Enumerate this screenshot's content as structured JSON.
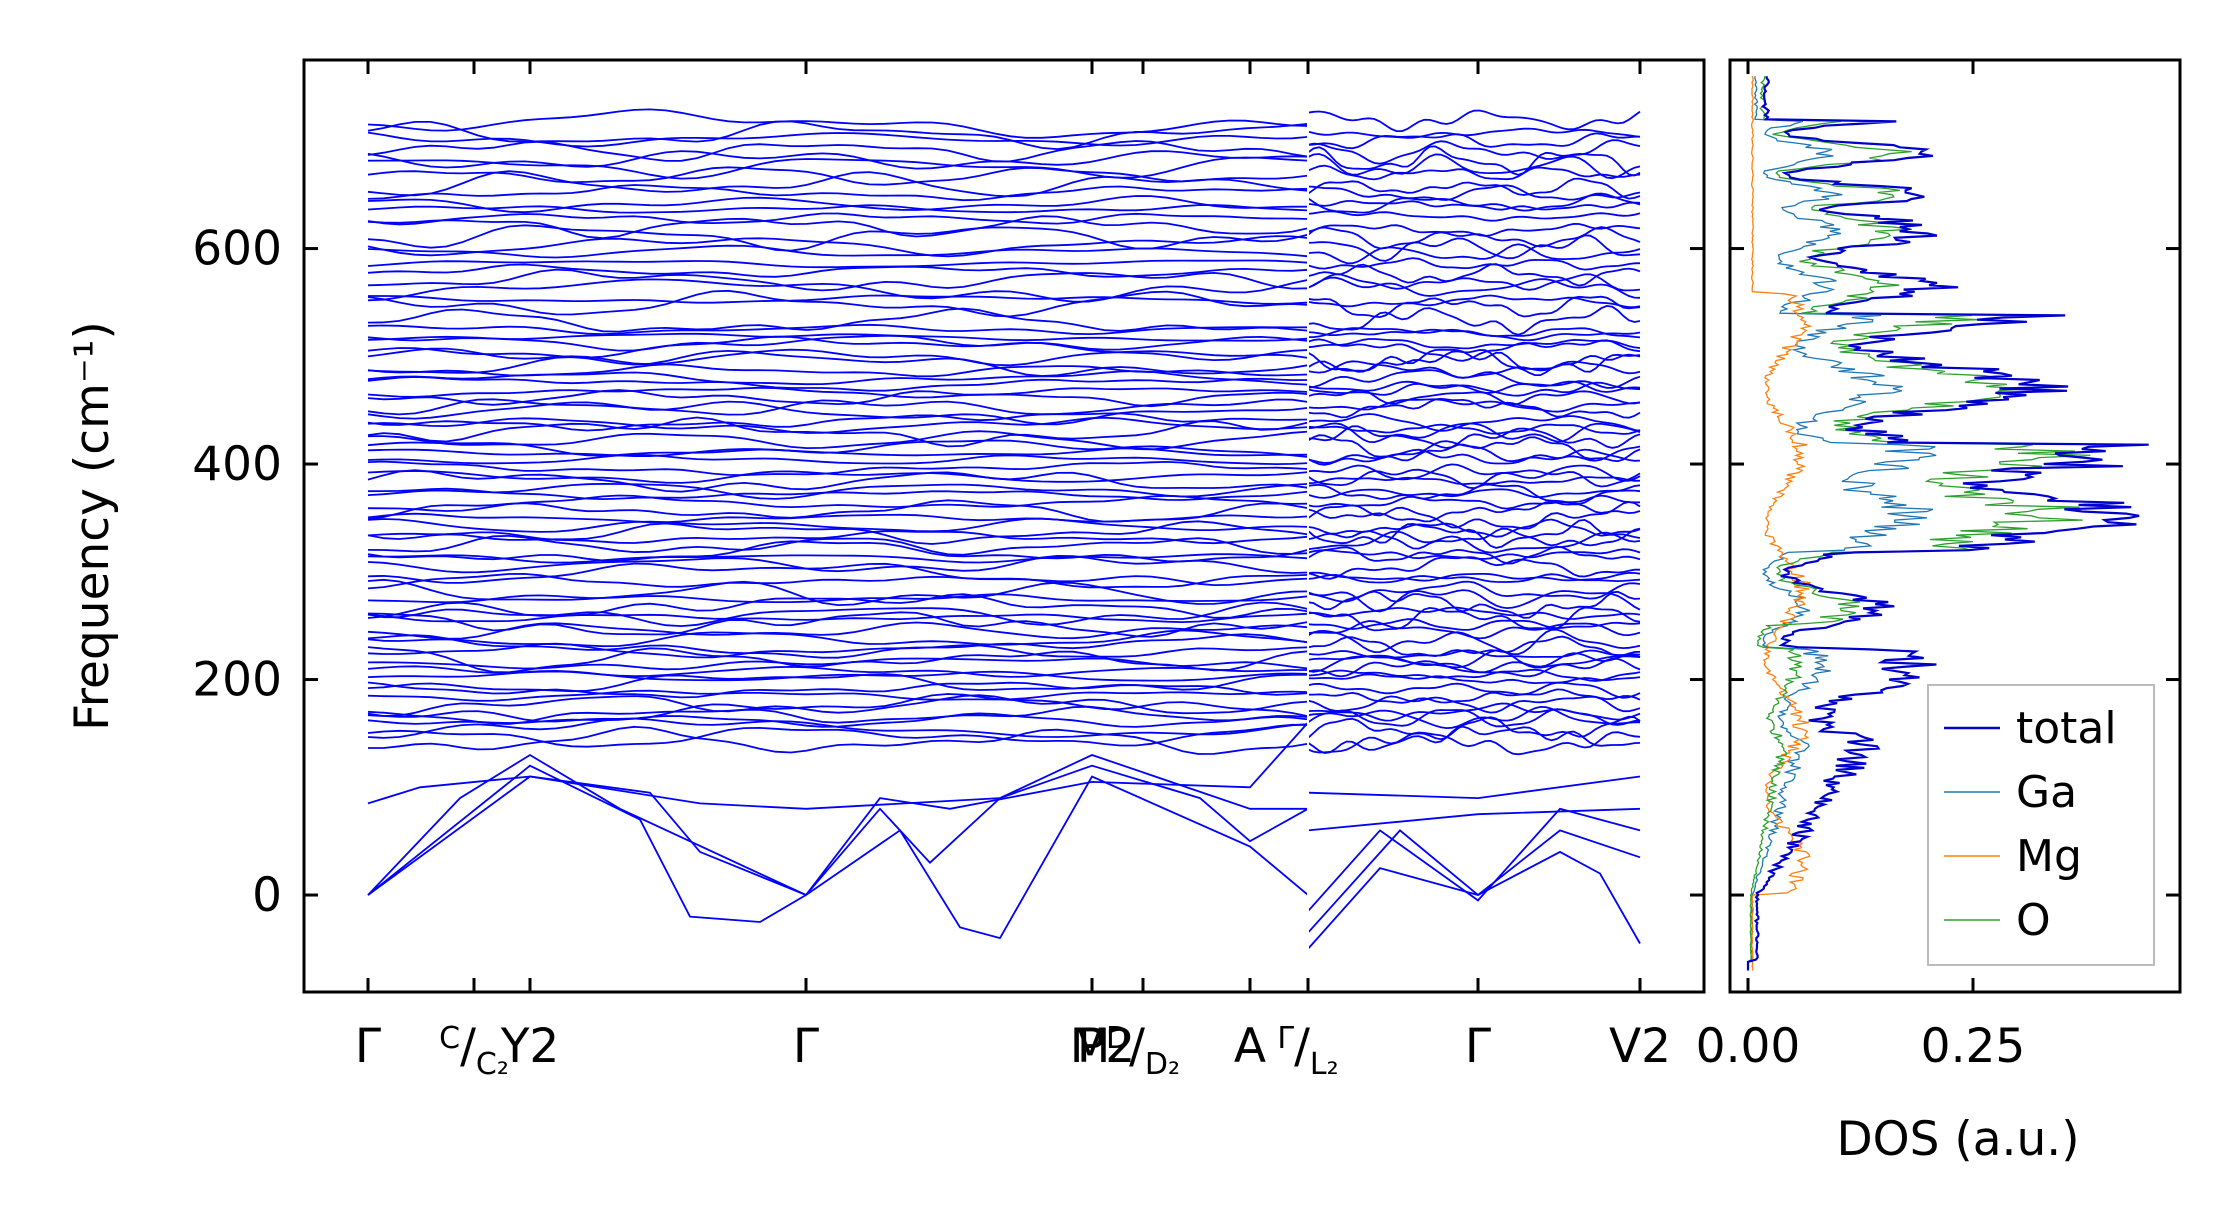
{
  "chart_data": [
    {
      "type": "line",
      "ylabel": "Frequency (cm⁻¹)",
      "ylim": [
        -90,
        775
      ],
      "yticks": [
        0,
        200,
        400,
        600
      ],
      "xticks": [
        {
          "label": "Γ",
          "sub": ""
        },
        {
          "label": "C",
          "sub": "",
          "slash": "/",
          "sub2": "C₂"
        },
        {
          "label": "Y",
          "sub": "2"
        },
        {
          "label": "Γ",
          "sub": ""
        },
        {
          "label": "M",
          "sub": ""
        },
        {
          "label": "D",
          "sub": "",
          "slash": "/",
          "sub2": "D₂"
        },
        {
          "label": "P",
          "sub": "2"
        },
        {
          "label": "A",
          "sub": ""
        },
        {
          "label": "Γ",
          "sub": "",
          "slash": "/",
          "sub2": "L₂"
        },
        {
          "label": "Γ",
          "sub": ""
        },
        {
          "label": "V",
          "sub": "2"
        }
      ],
      "bands_summary": {
        "acoustic_branches_start": 0,
        "optical_band_range": [
          135,
          730
        ],
        "lowest_imaginary_dip": -45,
        "series_color": "#0000ff"
      },
      "grid": false
    },
    {
      "type": "line",
      "xlabel": "DOS (a.u.)",
      "xticks": [
        "0.00",
        "0.25"
      ],
      "xlim": [
        -0.02,
        0.48
      ],
      "ylim": [
        -90,
        775
      ],
      "legend": "lower-right",
      "series": [
        {
          "name": "total",
          "color": "#0000cc"
        },
        {
          "name": "Ga",
          "color": "#1f77b4"
        },
        {
          "name": "Mg",
          "color": "#ff7f0e"
        },
        {
          "name": "O",
          "color": "#2ca02c"
        }
      ]
    }
  ]
}
